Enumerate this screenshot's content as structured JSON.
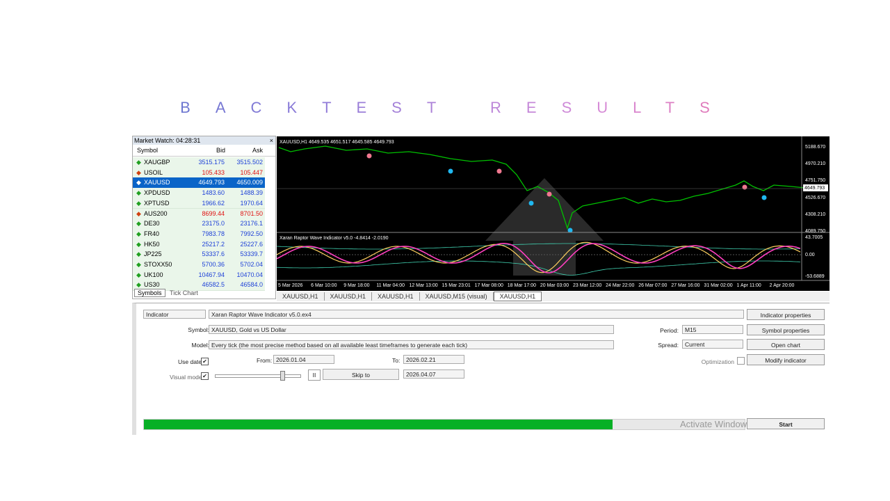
{
  "title": "BACKTEST RESULTS",
  "market_watch": {
    "title": "Market Watch: 04:28:31",
    "columns": [
      "Symbol",
      "Bid",
      "Ask"
    ],
    "rows": [
      {
        "symbol": "XAUGBP",
        "bid": "3515.175",
        "ask": "3515.502",
        "color": "#1c3fd8"
      },
      {
        "symbol": "USOIL",
        "bid": "105.433",
        "ask": "105.447",
        "color": "#e01010"
      },
      {
        "symbol": "XAUUSD",
        "bid": "4649.793",
        "ask": "4650.009",
        "color": "#ffffff"
      },
      {
        "symbol": "XPDUSD",
        "bid": "1483.60",
        "ask": "1488.39",
        "color": "#1c3fd8"
      },
      {
        "symbol": "XPTUSD",
        "bid": "1966.62",
        "ask": "1970.64",
        "color": "#1c3fd8"
      },
      {
        "symbol": "AUS200",
        "bid": "8699.44",
        "ask": "8701.50",
        "color": "#e01010"
      },
      {
        "symbol": "DE30",
        "bid": "23175.0",
        "ask": "23176.1",
        "color": "#1c3fd8"
      },
      {
        "symbol": "FR40",
        "bid": "7983.78",
        "ask": "7992.50",
        "color": "#1c3fd8"
      },
      {
        "symbol": "HK50",
        "bid": "25217.2",
        "ask": "25227.6",
        "color": "#1c3fd8"
      },
      {
        "symbol": "JP225",
        "bid": "53337.6",
        "ask": "53339.7",
        "color": "#1c3fd8"
      },
      {
        "symbol": "STOXX50",
        "bid": "5700.36",
        "ask": "5702.04",
        "color": "#1c3fd8"
      },
      {
        "symbol": "UK100",
        "bid": "10467.94",
        "ask": "10470.04",
        "color": "#1c3fd8"
      },
      {
        "symbol": "US30",
        "bid": "46582.5",
        "ask": "46584.0",
        "color": "#1c3fd8"
      }
    ],
    "tabs": [
      "Symbols",
      "Tick Chart"
    ]
  },
  "chart": {
    "header": "XAUUSD,H1  4649.535 4651.517 4645.585 4649.793",
    "price_labels": [
      "5188.670",
      "4970.210",
      "4751.750",
      "4526.670",
      "4308.210",
      "4089.750"
    ],
    "current_price": "4649.793",
    "indicator": "Xaran Raptor Wave Indicator v5.0 -4.8414 -2.0190",
    "indicator_labels": [
      "43.7005",
      "0.00",
      "-53.6889"
    ],
    "time_labels": [
      "5 Mar 2026",
      "6 Mar 10:00",
      "9 Mar 18:00",
      "11 Mar 04:00",
      "12 Mar 13:00",
      "15 Mar 23:01",
      "17 Mar 08:00",
      "18 Mar 17:00",
      "20 Mar 03:00",
      "23 Mar 12:00",
      "24 Mar 22:00",
      "26 Mar 07:00",
      "27 Mar 16:00",
      "31 Mar 02:00",
      "1 Apr 11:00",
      "2 Apr 20:00"
    ],
    "tabs": [
      "XAUUSD,H1",
      "XAUUSD,H1",
      "XAUUSD,H1",
      "XAUUSD,M15 (visual)",
      "XAUUSD,H1"
    ]
  },
  "tester": {
    "type": "Indicator",
    "expert": "Xaran Raptor Wave Indicator v5.0.ex4",
    "symbol_label": "Symbol:",
    "symbol": "XAUUSD, Gold vs US Dollar",
    "model_label": "Model:",
    "model": "Every tick (the most precise method based on all available least timeframes to generate each tick)",
    "use_date": "Use date",
    "from_label": "From:",
    "from": "2026.01.04",
    "to_label": "To:",
    "to": "2026.02.21",
    "visual_mode": "Visual mode",
    "skip_to": "Skip to",
    "skip_date": "2026.04.07",
    "period_label": "Period:",
    "period": "M15",
    "spread_label": "Spread:",
    "spread": "Current",
    "optimization": "Optimization",
    "buttons": [
      "Indicator properties",
      "Symbol properties",
      "Open chart",
      "Modify indicator"
    ],
    "start": "Start"
  },
  "watermark": "Activate Windows"
}
